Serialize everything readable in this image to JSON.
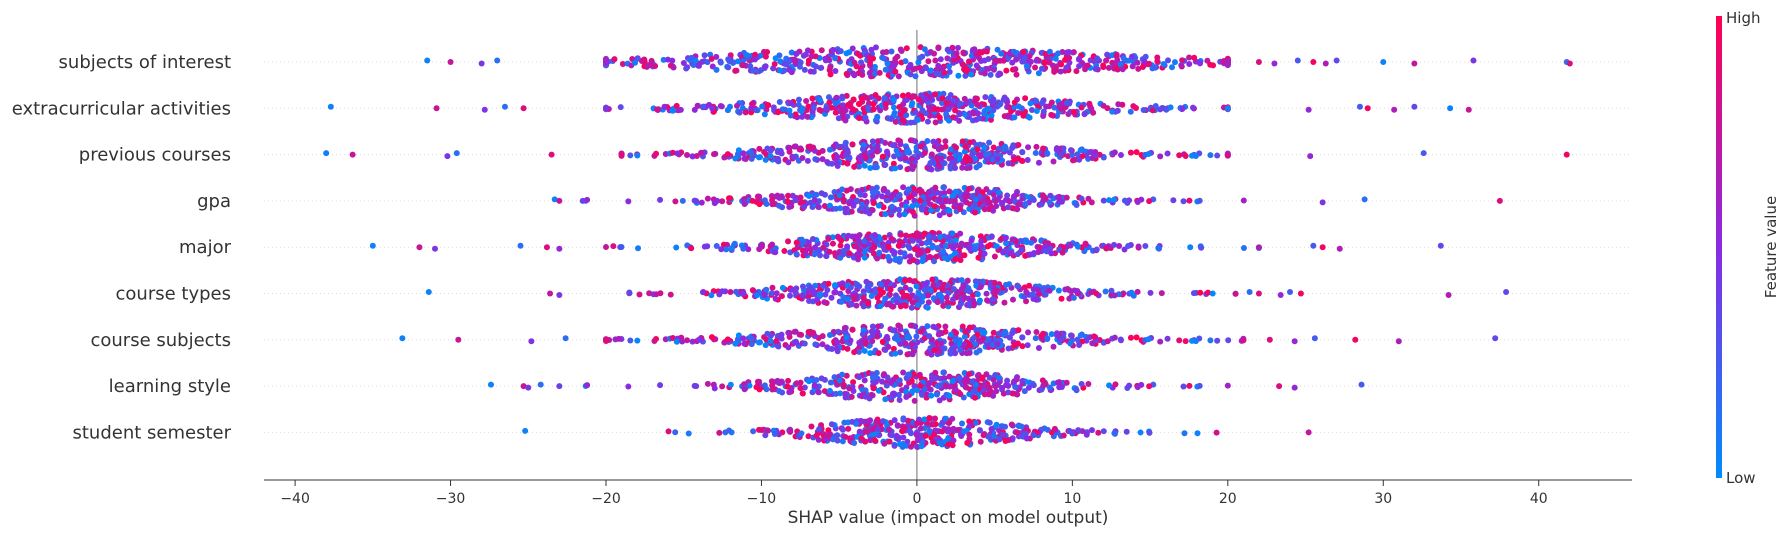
{
  "chart_data": {
    "type": "scatter",
    "subtype": "shap-beeswarm",
    "title": "",
    "xlabel": "SHAP value (impact on model output)",
    "ylabel": "",
    "xlim": [
      -42,
      46
    ],
    "xticks": [
      -40,
      -30,
      -20,
      -10,
      0,
      10,
      20,
      30,
      40
    ],
    "grid": false,
    "colorbar": {
      "label": "Feature value",
      "high_label": "High",
      "low_label": "Low",
      "high_color": "#ff0052",
      "mid_color": "#8a2be2",
      "low_color": "#008bfb"
    },
    "features": [
      {
        "name": "subjects of interest",
        "min": -31.5,
        "max": 42,
        "core_low": -20,
        "core_high": 20,
        "spread": 9.5,
        "density": 1.0,
        "outliers": [
          -31.5,
          -30,
          -28,
          -27,
          22,
          23,
          24.5,
          25.5,
          26.3,
          27,
          30,
          32,
          35.8,
          41.8,
          42
        ]
      },
      {
        "name": "extracurricular activities",
        "min": -37.7,
        "max": 35.5,
        "core_low": -20,
        "core_high": 20,
        "spread": 6.5,
        "density": 0.85,
        "outliers": [
          -37.7,
          -30.9,
          -27.8,
          -26.5,
          -25.3,
          25.2,
          28.5,
          29,
          30.7,
          32,
          34.3,
          35.5
        ]
      },
      {
        "name": "previous courses",
        "min": -38,
        "max": 41.8,
        "core_low": -19,
        "core_high": 20,
        "spread": 6,
        "density": 0.8,
        "outliers": [
          -38,
          -36.3,
          -30.2,
          -29.6,
          -23.5,
          25.3,
          32.6,
          41.8
        ]
      },
      {
        "name": "gpa",
        "min": -23.3,
        "max": 37.5,
        "core_low": -21.5,
        "core_high": 22,
        "spread": 5.5,
        "density": 0.75,
        "outliers": [
          -23.3,
          -23,
          26.1,
          28.8,
          37.5
        ]
      },
      {
        "name": "major",
        "min": -35,
        "max": 33.7,
        "core_low": -20,
        "core_high": 22,
        "spread": 5.5,
        "density": 0.75,
        "outliers": [
          -35,
          -32,
          -31,
          -25.5,
          -23.8,
          -23,
          25.5,
          26.1,
          27.2,
          33.7
        ]
      },
      {
        "name": "course types",
        "min": -31.4,
        "max": 37.9,
        "core_low": -18.5,
        "core_high": 20.5,
        "spread": 5.5,
        "density": 0.75,
        "outliers": [
          -31.4,
          -23.6,
          -23,
          21.4,
          22,
          23.4,
          24,
          24.7,
          34.2,
          37.9
        ]
      },
      {
        "name": "course subjects",
        "min": -33.1,
        "max": 37.2,
        "core_low": -20,
        "core_high": 21,
        "spread": 6,
        "density": 0.75,
        "outliers": [
          -33.1,
          -29.5,
          -24.8,
          -22.6,
          22.7,
          24.3,
          25.6,
          28.2,
          31,
          37.2
        ]
      },
      {
        "name": "learning style",
        "min": -27.4,
        "max": 28.6,
        "core_low": -23,
        "core_high": 20,
        "spread": 5.5,
        "density": 0.65,
        "outliers": [
          -27.4,
          -25.3,
          -25,
          -24.2,
          23.3,
          24.3,
          28.6
        ]
      },
      {
        "name": "student semester",
        "min": -25.2,
        "max": 25.2,
        "core_low": -21,
        "core_high": 21.5,
        "spread": 4.5,
        "density": 0.6,
        "outliers": [
          -25.2,
          25.2
        ]
      }
    ]
  }
}
